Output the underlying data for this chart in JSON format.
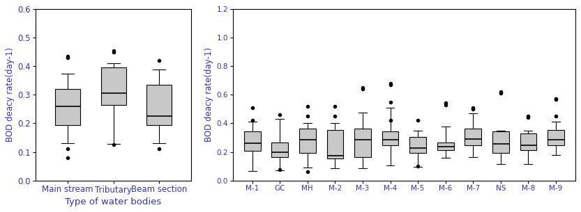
{
  "chart1": {
    "xlabel": "Type of water bodies",
    "ylabel": "BOD deacy rate(day-1)",
    "ylim": [
      0.0,
      0.6
    ],
    "yticks": [
      0.0,
      0.1,
      0.2,
      0.3,
      0.4,
      0.5,
      0.6
    ],
    "categories": [
      "Main stream",
      "Tributary",
      "Beam section"
    ],
    "box_stats": [
      {
        "med": 0.26,
        "q1": 0.195,
        "q3": 0.32,
        "whislo": 0.13,
        "whishi": 0.375,
        "fliers": [
          0.435,
          0.43,
          0.11,
          0.08
        ]
      },
      {
        "med": 0.305,
        "q1": 0.265,
        "q3": 0.395,
        "whislo": 0.128,
        "whishi": 0.41,
        "fliers": [
          0.455,
          0.45,
          0.125
        ]
      },
      {
        "med": 0.225,
        "q1": 0.195,
        "q3": 0.335,
        "whislo": 0.13,
        "whishi": 0.39,
        "fliers": [
          0.42,
          0.11
        ]
      }
    ],
    "box_color": "#c8c8c8",
    "flier_color": "#000000",
    "label_color": "#3333bb",
    "box_width": 0.55,
    "tick_fontsize": 8.5,
    "ylabel_fontsize": 8.5,
    "xlabel_fontsize": 9.5
  },
  "chart2": {
    "xlabel": "",
    "ylabel": "BOD deacy rate(day-1)",
    "ylim": [
      0.0,
      1.2
    ],
    "yticks": [
      0.0,
      0.2,
      0.4,
      0.6,
      0.8,
      1.0,
      1.2
    ],
    "categories": [
      "M-1",
      "GC",
      "MH",
      "M-2",
      "M-3",
      "M-4",
      "M-5",
      "M-6",
      "M-7",
      "NS",
      "M-8",
      "M-9"
    ],
    "box_stats": [
      {
        "med": 0.26,
        "q1": 0.205,
        "q3": 0.345,
        "whislo": 0.065,
        "whishi": 0.41,
        "fliers": [
          0.51,
          0.42
        ]
      },
      {
        "med": 0.2,
        "q1": 0.165,
        "q3": 0.265,
        "whislo": 0.07,
        "whishi": 0.43,
        "fliers": [
          0.46,
          0.075
        ]
      },
      {
        "med": 0.285,
        "q1": 0.195,
        "q3": 0.365,
        "whislo": 0.09,
        "whishi": 0.4,
        "fliers": [
          0.52,
          0.45,
          0.06
        ]
      },
      {
        "med": 0.175,
        "q1": 0.155,
        "q3": 0.355,
        "whislo": 0.085,
        "whishi": 0.4,
        "fliers": [
          0.52,
          0.45
        ]
      },
      {
        "med": 0.285,
        "q1": 0.165,
        "q3": 0.365,
        "whislo": 0.085,
        "whishi": 0.475,
        "fliers": [
          0.65,
          0.64
        ]
      },
      {
        "med": 0.285,
        "q1": 0.245,
        "q3": 0.345,
        "whislo": 0.105,
        "whishi": 0.51,
        "fliers": [
          0.68,
          0.67,
          0.55,
          0.42
        ]
      },
      {
        "med": 0.225,
        "q1": 0.195,
        "q3": 0.305,
        "whislo": 0.095,
        "whishi": 0.35,
        "fliers": [
          0.42,
          0.1
        ]
      },
      {
        "med": 0.235,
        "q1": 0.21,
        "q3": 0.265,
        "whislo": 0.16,
        "whishi": 0.38,
        "fliers": [
          0.545,
          0.53
        ]
      },
      {
        "med": 0.29,
        "q1": 0.245,
        "q3": 0.365,
        "whislo": 0.165,
        "whishi": 0.47,
        "fliers": [
          0.51,
          0.5
        ]
      },
      {
        "med": 0.255,
        "q1": 0.195,
        "q3": 0.345,
        "whislo": 0.115,
        "whishi": 0.35,
        "fliers": [
          0.62,
          0.61
        ]
      },
      {
        "med": 0.245,
        "q1": 0.21,
        "q3": 0.33,
        "whislo": 0.115,
        "whishi": 0.35,
        "fliers": [
          0.45,
          0.44
        ]
      },
      {
        "med": 0.285,
        "q1": 0.245,
        "q3": 0.355,
        "whislo": 0.18,
        "whishi": 0.41,
        "fliers": [
          0.575,
          0.57,
          0.45
        ]
      }
    ],
    "box_color": "#c8c8c8",
    "flier_color": "#000000",
    "label_color": "#3333bb",
    "box_width": 0.6,
    "tick_fontsize": 7.5,
    "ylabel_fontsize": 8.5,
    "xlabel_fontsize": 9.0
  }
}
